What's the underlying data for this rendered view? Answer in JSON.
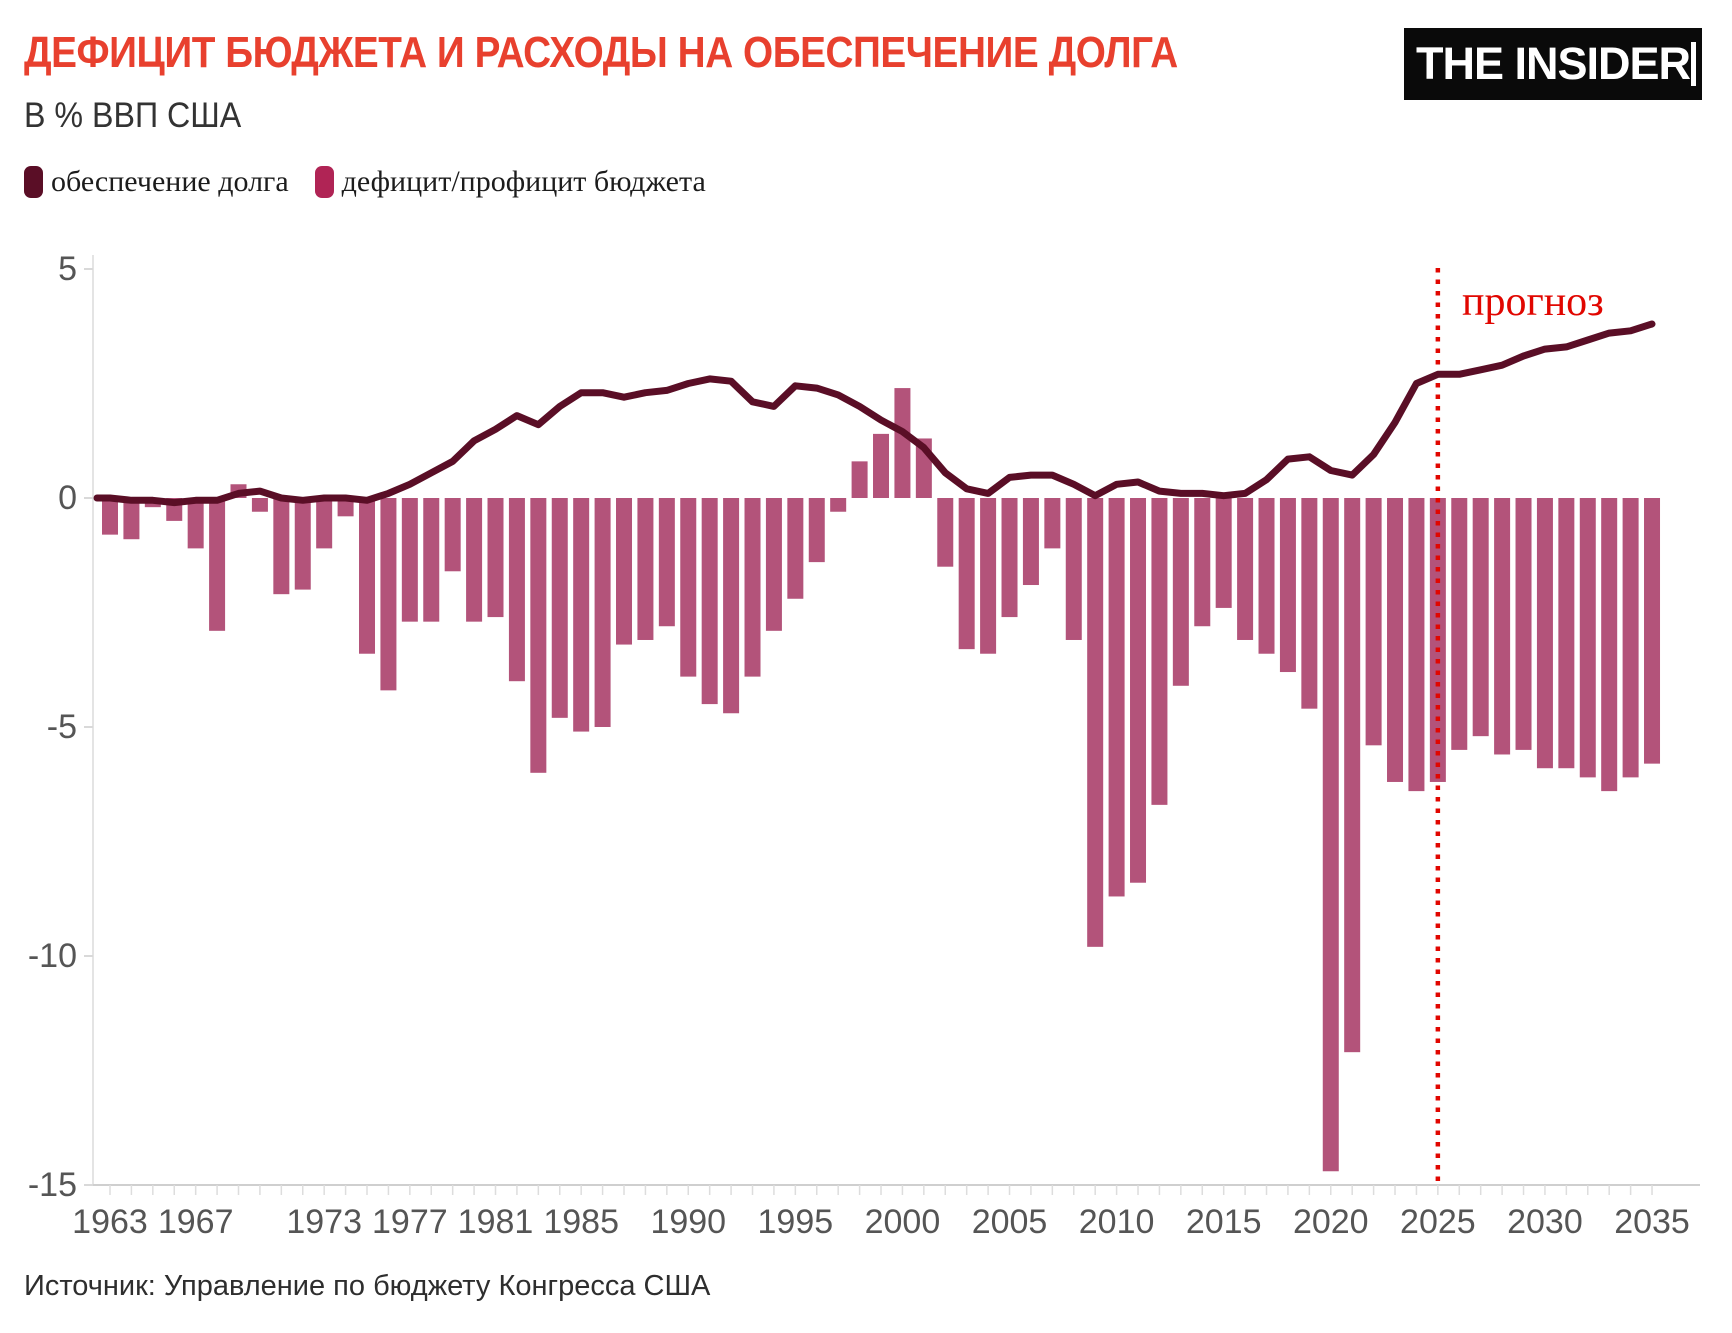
{
  "header": {
    "title": "ДЕФИЦИТ БЮДЖЕТА И РАСХОДЫ НА ОБЕСПЕЧЕНИЕ ДОЛГА",
    "subtitle": "В % ВВП США",
    "logo_text": "THE INSIDER"
  },
  "legend": {
    "items": [
      {
        "label": "обеспечение долга",
        "color": "#5a0e26"
      },
      {
        "label": "дефицит/профицит бюджета",
        "color": "#b02455"
      }
    ]
  },
  "source_note": "Источник: Управление по бюджету Конгресса США",
  "chart_data": {
    "type": "bar+line",
    "title": "Дефицит бюджета и расходы на обеспечение долга, % ВВП США",
    "x": [
      1963,
      1964,
      1965,
      1966,
      1967,
      1968,
      1969,
      1970,
      1971,
      1972,
      1973,
      1974,
      1975,
      1976,
      1977,
      1978,
      1979,
      1980,
      1981,
      1982,
      1983,
      1984,
      1985,
      1986,
      1987,
      1988,
      1989,
      1990,
      1991,
      1992,
      1993,
      1994,
      1995,
      1996,
      1997,
      1998,
      1999,
      2000,
      2001,
      2002,
      2003,
      2004,
      2005,
      2006,
      2007,
      2008,
      2009,
      2010,
      2011,
      2012,
      2013,
      2014,
      2015,
      2016,
      2017,
      2018,
      2019,
      2020,
      2021,
      2022,
      2023,
      2024,
      2025,
      2026,
      2027,
      2028,
      2029,
      2030,
      2031,
      2032,
      2033,
      2034,
      2035
    ],
    "series": [
      {
        "name": "обеспечение долга",
        "type": "line",
        "color": "#5a0e26",
        "values": [
          0.0,
          -0.05,
          -0.05,
          -0.1,
          -0.05,
          -0.05,
          0.1,
          0.15,
          0.0,
          -0.05,
          0.0,
          0.0,
          -0.05,
          0.1,
          0.3,
          0.55,
          0.8,
          1.25,
          1.5,
          1.8,
          1.6,
          2.0,
          2.3,
          2.3,
          2.2,
          2.3,
          2.35,
          2.5,
          2.6,
          2.55,
          2.1,
          2.0,
          2.45,
          2.4,
          2.25,
          2.0,
          1.7,
          1.45,
          1.1,
          0.55,
          0.2,
          0.1,
          0.45,
          0.5,
          0.5,
          0.3,
          0.05,
          0.3,
          0.35,
          0.15,
          0.1,
          0.1,
          0.05,
          0.1,
          0.4,
          0.85,
          0.9,
          0.6,
          0.5,
          0.95,
          1.65,
          2.5,
          2.7,
          2.7,
          2.8,
          2.9,
          3.1,
          3.25,
          3.3,
          3.45,
          3.6,
          3.65,
          3.8
        ]
      },
      {
        "name": "дефицит/профицит бюджета",
        "type": "bar",
        "color": "#b3537a",
        "values": [
          -0.8,
          -0.9,
          -0.2,
          -0.5,
          -1.1,
          -2.9,
          0.3,
          -0.3,
          -2.1,
          -2.0,
          -1.1,
          -0.4,
          -3.4,
          -4.2,
          -2.7,
          -2.7,
          -1.6,
          -2.7,
          -2.6,
          -4.0,
          -6.0,
          -4.8,
          -5.1,
          -5.0,
          -3.2,
          -3.1,
          -2.8,
          -3.9,
          -4.5,
          -4.7,
          -3.9,
          -2.9,
          -2.2,
          -1.4,
          -0.3,
          0.8,
          1.4,
          2.4,
          1.3,
          -1.5,
          -3.3,
          -3.4,
          -2.6,
          -1.9,
          -1.1,
          -3.1,
          -9.8,
          -8.7,
          -8.4,
          -6.7,
          -4.1,
          -2.8,
          -2.4,
          -3.1,
          -3.4,
          -3.8,
          -4.6,
          -14.7,
          -12.1,
          -5.4,
          -6.2,
          -6.4,
          -6.2,
          -5.5,
          -5.2,
          -5.6,
          -5.5,
          -5.9,
          -5.9,
          -6.1,
          -6.4,
          -6.1,
          -5.8
        ]
      }
    ],
    "ylim": [
      -15,
      5
    ],
    "y_ticks": [
      5,
      0,
      -5,
      -10,
      -15
    ],
    "x_tick_labels": [
      1963,
      1967,
      1973,
      1977,
      1981,
      1985,
      1990,
      1995,
      2000,
      2005,
      2010,
      2015,
      2020,
      2025,
      2030,
      2035
    ],
    "grid": false,
    "legend_position": "top-left",
    "forecast_divider": {
      "x": 2025,
      "label": "прогноз",
      "color": "#e10600"
    }
  }
}
